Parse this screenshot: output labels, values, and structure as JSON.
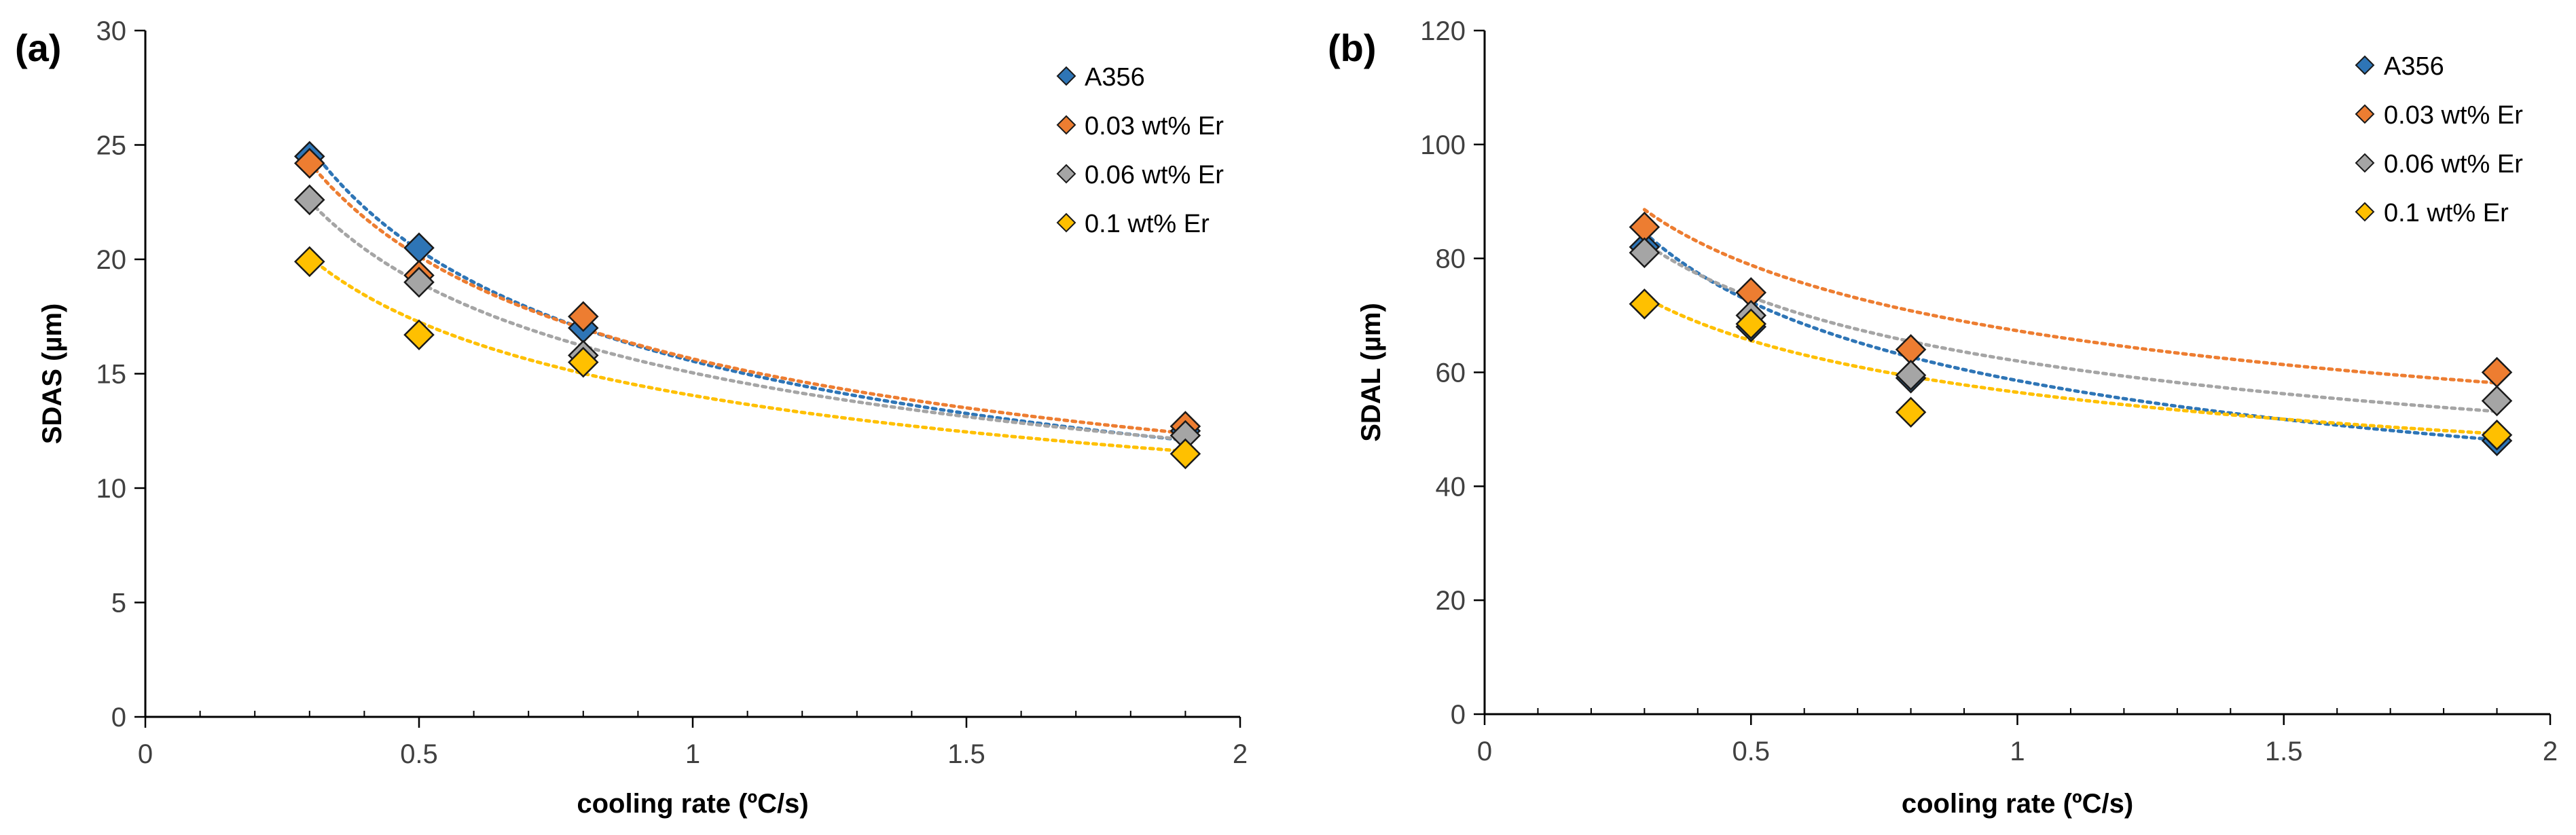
{
  "chart_data": [
    {
      "panel_label": "(a)",
      "type": "scatter",
      "xlabel": "cooling rate (ºC/s)",
      "ylabel": "SDAS (µm)",
      "xlim": [
        0,
        2
      ],
      "ylim": [
        0,
        30
      ],
      "xticks": [
        0,
        0.5,
        1,
        1.5,
        2
      ],
      "xtick_labels": [
        "0",
        "0.5",
        "1",
        "1.5",
        "2"
      ],
      "yticks": [
        0,
        5,
        10,
        15,
        20,
        25,
        30
      ],
      "ytick_labels": [
        "0",
        "5",
        "10",
        "15",
        "20",
        "25",
        "30"
      ],
      "x": [
        0.3,
        0.5,
        0.8,
        1.9
      ],
      "legend_position": "top-right",
      "grid": false,
      "series": [
        {
          "name": "A356",
          "color": "#2E75B6",
          "values": [
            24.5,
            20.5,
            17.0,
            12.5
          ],
          "trendline": {
            "type": "power",
            "a": 15.55,
            "b": -0.392
          }
        },
        {
          "name": "0.03 wt% Er",
          "color": "#ED7D31",
          "values": [
            24.2,
            19.3,
            17.5,
            12.7
          ],
          "trendline": {
            "type": "power",
            "a": 15.65,
            "b": -0.363
          }
        },
        {
          "name": "0.06 wt% Er",
          "color": "#A5A5A5",
          "values": [
            22.6,
            19.0,
            15.8,
            12.3
          ],
          "trendline": {
            "type": "power",
            "a": 15.04,
            "b": -0.336
          }
        },
        {
          "name": "0.1 wt% Er",
          "color": "#FFC000",
          "values": [
            19.9,
            16.7,
            15.5,
            11.5
          ],
          "trendline": {
            "type": "power",
            "a": 14.05,
            "b": -0.297
          }
        }
      ]
    },
    {
      "panel_label": "(b)",
      "type": "scatter",
      "xlabel": "cooling rate (ºC/s)",
      "ylabel": "SDAL (µm)",
      "xlim": [
        0,
        2
      ],
      "ylim": [
        0,
        120
      ],
      "xticks": [
        0,
        0.5,
        1,
        1.5,
        2
      ],
      "xtick_labels": [
        "0",
        "0.5",
        "1",
        "1.5",
        "2"
      ],
      "yticks": [
        0,
        20,
        40,
        60,
        80,
        100,
        120
      ],
      "ytick_labels": [
        "0",
        "20",
        "40",
        "60",
        "80",
        "100",
        "120"
      ],
      "x": [
        0.3,
        0.5,
        0.8,
        1.9
      ],
      "legend_position": "top-right",
      "grid": false,
      "series": [
        {
          "name": "A356",
          "color": "#2E75B6",
          "values": [
            82,
            68,
            59,
            48
          ],
          "trendline": {
            "type": "power",
            "a": 58.56,
            "b": -0.305
          }
        },
        {
          "name": "0.03 wt% Er",
          "color": "#ED7D31",
          "values": [
            85.5,
            74,
            64,
            60
          ],
          "trendline": {
            "type": "power",
            "a": 67.3,
            "b": -0.228
          }
        },
        {
          "name": "0.06 wt% Er",
          "color": "#A5A5A5",
          "values": [
            81,
            70,
            59.5,
            55
          ],
          "trendline": {
            "type": "power",
            "a": 62.0,
            "b": -0.24
          }
        },
        {
          "name": "0.1 wt% Er",
          "color": "#FFC000",
          "values": [
            72,
            68.5,
            53,
            49
          ],
          "trendline": {
            "type": "power",
            "a": 56.5,
            "b": -0.215
          }
        }
      ]
    }
  ]
}
